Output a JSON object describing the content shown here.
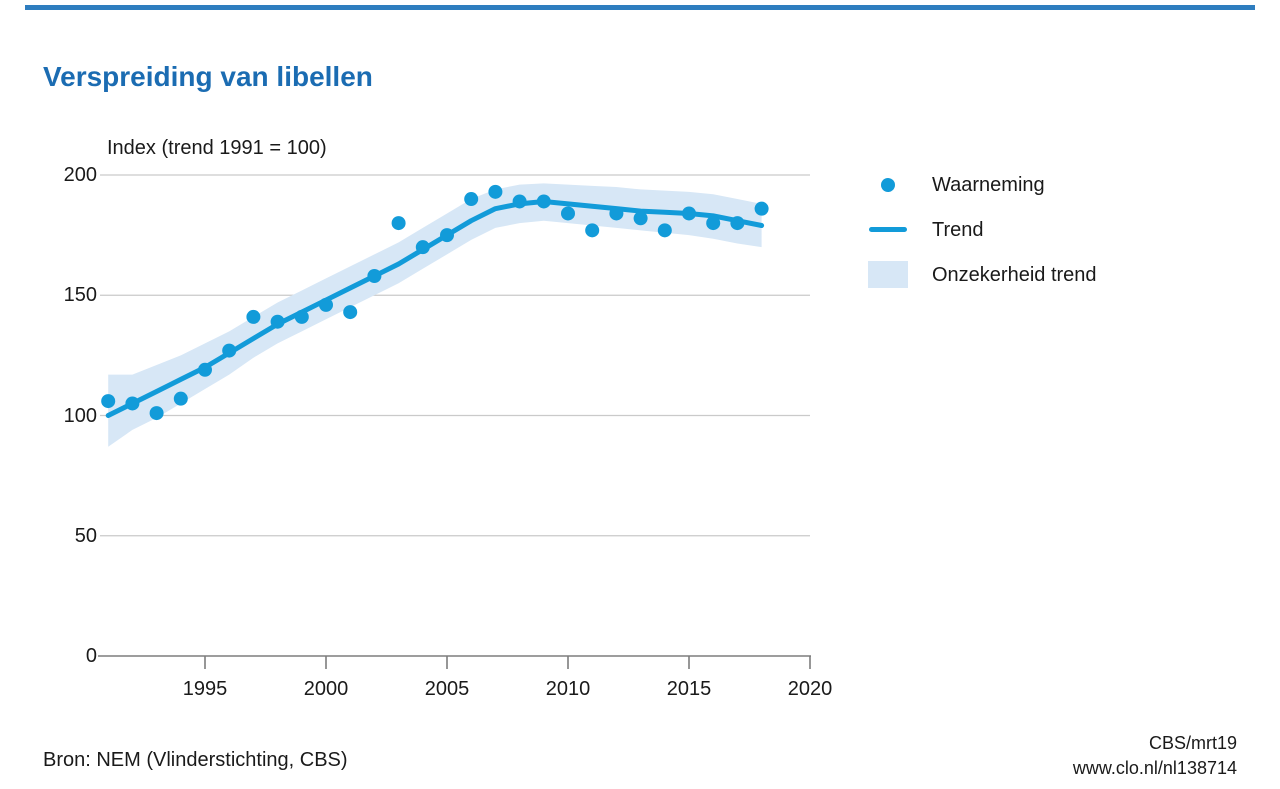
{
  "page": {
    "title": "Verspreiding van libellen",
    "footer": {
      "source": "Bron: NEM (Vlinderstichting, CBS)",
      "credit_line1": "CBS/mrt19",
      "credit_line2": "www.clo.nl/nl138714"
    }
  },
  "legend": {
    "items": [
      {
        "symbol": "dot",
        "label": "Waarneming"
      },
      {
        "symbol": "line",
        "label": "Trend"
      },
      {
        "symbol": "band",
        "label": "Onzekerheid trend"
      }
    ]
  },
  "colors": {
    "series_blue": "#129bd9",
    "uncertainty_band_blue": "#d7e7f6",
    "title_blue": "#1b6cb2",
    "grid_gray": "#cacaca",
    "axis_gray": "#7d7d7d",
    "text_dark": "#1a1a1a",
    "top_rule_blue": "#2e7dbf"
  },
  "chart_data": {
    "type": "line",
    "title": "Verspreiding van libellen",
    "ylabel": "Index (trend 1991 = 100)",
    "xlabel": "",
    "x": [
      1991,
      1992,
      1993,
      1994,
      1995,
      1996,
      1997,
      1998,
      1999,
      2000,
      2001,
      2002,
      2003,
      2004,
      2005,
      2006,
      2007,
      2008,
      2009,
      2010,
      2011,
      2012,
      2013,
      2014,
      2015,
      2016,
      2017,
      2018
    ],
    "series": [
      {
        "name": "Waarneming",
        "style": "scatter",
        "values": [
          106,
          105,
          101,
          107,
          119,
          127,
          141,
          139,
          141,
          146,
          143,
          158,
          180,
          170,
          175,
          190,
          193,
          189,
          189,
          184,
          177,
          184,
          182,
          177,
          184,
          180,
          180,
          186
        ]
      },
      {
        "name": "Trend",
        "style": "line",
        "values": [
          100,
          105,
          110,
          115,
          120,
          126,
          132,
          138,
          143,
          148,
          153,
          158,
          163,
          169,
          175,
          181,
          186,
          188,
          189,
          188,
          187,
          186,
          185,
          184.5,
          184,
          183,
          181,
          179
        ]
      },
      {
        "name": "Onzekerheid trend",
        "style": "band",
        "lower": [
          87,
          94,
          99,
          105,
          111,
          117,
          124,
          130,
          135,
          140,
          145,
          150,
          155,
          161,
          167,
          173,
          178,
          180,
          181,
          180,
          179,
          178,
          177,
          176,
          175,
          173.5,
          171.5,
          170
        ],
        "upper": [
          117,
          117,
          121,
          125,
          130,
          135,
          141,
          147,
          152,
          157,
          162,
          167,
          172,
          178,
          184,
          190,
          194,
          196,
          196.5,
          196,
          195.5,
          195,
          194,
          193.5,
          193,
          192,
          190,
          188
        ]
      }
    ],
    "xticks": [
      1995,
      2000,
      2005,
      2010,
      2015,
      2020
    ],
    "yticks": [
      0,
      50,
      100,
      150,
      200
    ],
    "xlim": [
      1991,
      2020
    ],
    "ylim": [
      0,
      200
    ],
    "grid": true,
    "legend_position": "right"
  }
}
